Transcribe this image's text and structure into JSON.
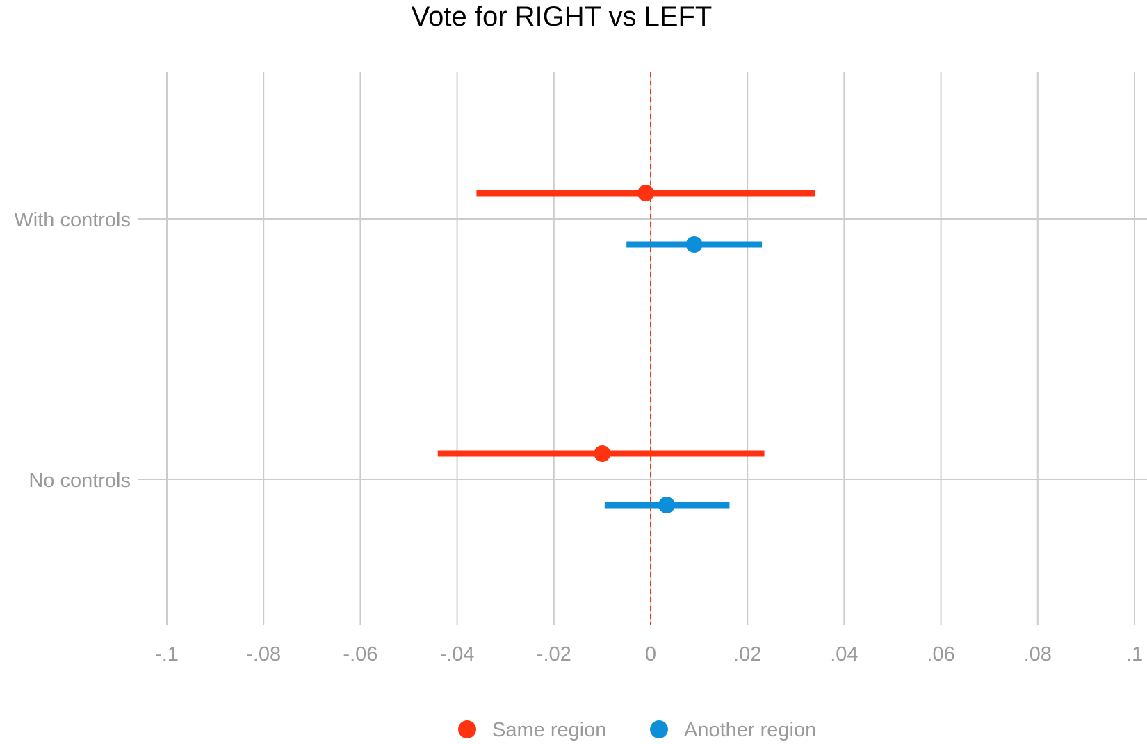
{
  "chart_data": {
    "type": "scatter",
    "title": "Vote for RIGHT vs LEFT",
    "xlabel": "",
    "ylabel": "",
    "xlim": [
      -0.1,
      0.1
    ],
    "x_ticks": [
      -0.1,
      -0.08,
      -0.06,
      -0.04,
      -0.02,
      0,
      0.02,
      0.04,
      0.06,
      0.08,
      0.1
    ],
    "x_tick_labels": [
      "-.1",
      "-.08",
      "-.06",
      "-.04",
      "-.02",
      "0",
      ".02",
      ".04",
      ".06",
      ".08",
      ".1"
    ],
    "categories": [
      "With controls",
      "No controls"
    ],
    "reference_line": {
      "x": 0,
      "style": "dashed",
      "color": "#ff3311"
    },
    "grid": true,
    "legend_position": "bottom",
    "series": [
      {
        "name": "Same region",
        "color": "#ff3311",
        "points": [
          {
            "category": "With controls",
            "estimate": -0.001,
            "ci_low": -0.036,
            "ci_high": 0.034
          },
          {
            "category": "No controls",
            "estimate": -0.01,
            "ci_low": -0.044,
            "ci_high": 0.0235
          }
        ]
      },
      {
        "name": "Another region",
        "color": "#0d8ed9",
        "points": [
          {
            "category": "With controls",
            "estimate": 0.009,
            "ci_low": -0.005,
            "ci_high": 0.023
          },
          {
            "category": "No controls",
            "estimate": 0.0033,
            "ci_low": -0.0095,
            "ci_high": 0.0163
          }
        ]
      }
    ]
  }
}
